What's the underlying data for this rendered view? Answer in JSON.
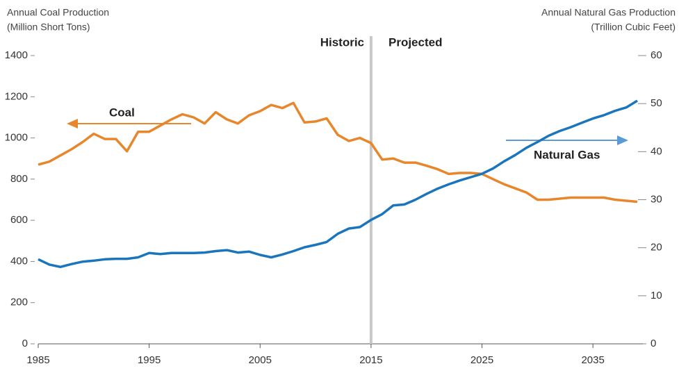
{
  "chart_data": {
    "type": "line",
    "y_title_lines": [
      "Annual Coal Production",
      "(Million Short Tons)"
    ],
    "y2_title_lines": [
      "Annual Natural Gas Production",
      "(Trillion Cubic Feet)"
    ],
    "annotations": [
      "Historic",
      "Projected",
      "Coal",
      "Natural Gas"
    ],
    "divider": 2015,
    "x": [
      1985,
      1986,
      1987,
      1988,
      1989,
      1990,
      1991,
      1992,
      1993,
      1994,
      1995,
      1996,
      1997,
      1998,
      1999,
      2000,
      2001,
      2002,
      2003,
      2004,
      2005,
      2006,
      2007,
      2008,
      2009,
      2010,
      2011,
      2012,
      2013,
      2014,
      2015,
      2016,
      2017,
      2018,
      2019,
      2020,
      2021,
      2022,
      2023,
      2024,
      2025,
      2026,
      2027,
      2028,
      2029,
      2030,
      2031,
      2032,
      2033,
      2034,
      2035,
      2036,
      2037,
      2038,
      2039
    ],
    "series": [
      {
        "name": "Coal",
        "color": "#e8862b",
        "axis": "y",
        "values": [
          870,
          885,
          915,
          945,
          980,
          1020,
          995,
          995,
          935,
          1030,
          1030,
          1060,
          1090,
          1115,
          1100,
          1070,
          1125,
          1090,
          1070,
          1110,
          1130,
          1160,
          1145,
          1170,
          1075,
          1080,
          1095,
          1015,
          985,
          1000,
          975,
          895,
          900,
          880,
          880,
          865,
          848,
          825,
          830,
          830,
          825,
          800,
          775,
          755,
          735,
          700,
          700,
          705,
          710,
          710,
          710,
          710,
          700,
          695,
          690
        ]
      },
      {
        "name": "Natural Gas",
        "color": "#1a75bc",
        "axis": "y2",
        "values": [
          17.6,
          16.5,
          16.0,
          16.6,
          17.1,
          17.3,
          17.6,
          17.7,
          17.7,
          18.0,
          18.9,
          18.7,
          18.9,
          18.9,
          18.9,
          19.0,
          19.3,
          19.5,
          19.0,
          19.2,
          18.5,
          18.0,
          18.6,
          19.3,
          20.1,
          20.6,
          21.2,
          22.9,
          24.0,
          24.3,
          25.8,
          27.0,
          28.8,
          29.0,
          30.0,
          31.2,
          32.3,
          33.2,
          34.0,
          34.7,
          35.4,
          36.5,
          38.0,
          39.3,
          40.8,
          42.0,
          43.3,
          44.3,
          45.1,
          46.0,
          46.9,
          47.6,
          48.5,
          49.2,
          50.6
        ]
      }
    ],
    "xlim": [
      1985,
      2039.5
    ],
    "xticks": [
      1985,
      1995,
      2005,
      2015,
      2025,
      2035
    ],
    "ylim": [
      0,
      1400
    ],
    "yticks": [
      0,
      200,
      400,
      600,
      800,
      1000,
      1200,
      1400
    ],
    "y2lim": [
      0,
      60
    ],
    "y2ticks": [
      0,
      10,
      20,
      30,
      40,
      50,
      60
    ],
    "grid": false
  }
}
